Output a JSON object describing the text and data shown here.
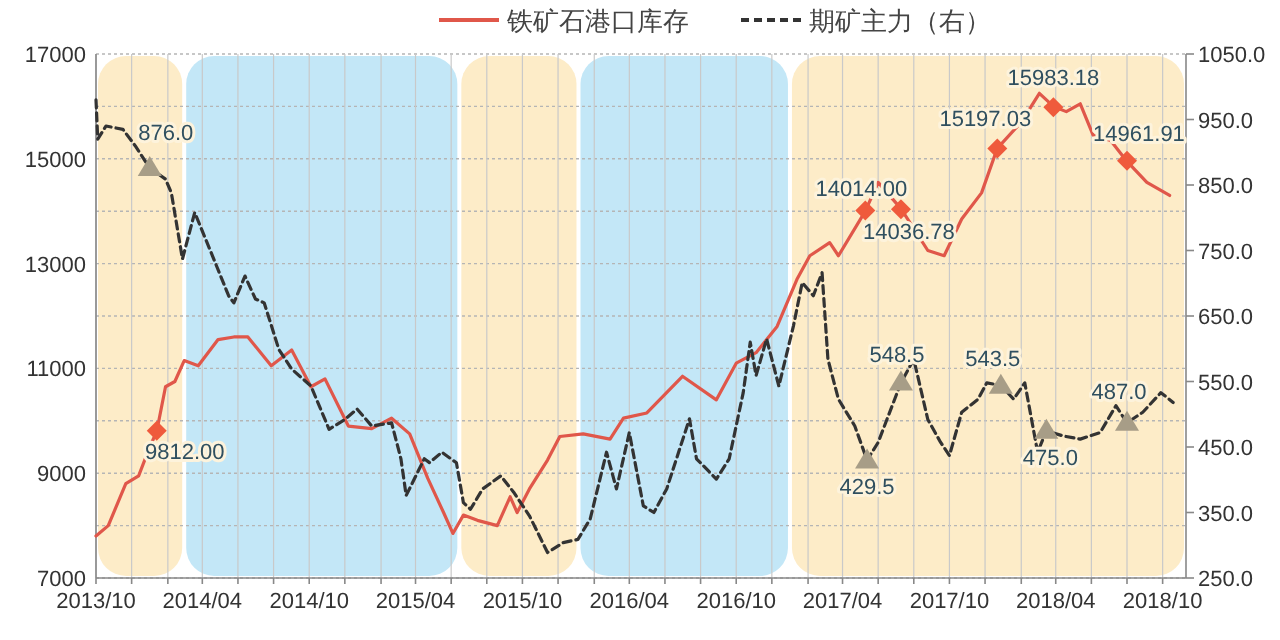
{
  "chart_data": {
    "type": "line",
    "legend": "top",
    "grid": true,
    "xlim": [
      "2013-10-01",
      "2018-11-10"
    ],
    "xticks": [
      {
        "value": "2013-10-01",
        "label": "2013/10"
      },
      {
        "value": "2013-12-01",
        "label": null
      },
      {
        "value": "2014-02-01",
        "label": null
      },
      {
        "value": "2014-04-01",
        "label": "2014/04"
      },
      {
        "value": "2014-06-01",
        "label": null
      },
      {
        "value": "2014-08-01",
        "label": null
      },
      {
        "value": "2014-10-01",
        "label": "2014/10"
      },
      {
        "value": "2014-12-01",
        "label": null
      },
      {
        "value": "2015-02-01",
        "label": null
      },
      {
        "value": "2015-04-01",
        "label": "2015/04"
      },
      {
        "value": "2015-06-01",
        "label": null
      },
      {
        "value": "2015-08-01",
        "label": null
      },
      {
        "value": "2015-10-01",
        "label": "2015/10"
      },
      {
        "value": "2015-12-01",
        "label": null
      },
      {
        "value": "2016-02-01",
        "label": null
      },
      {
        "value": "2016-04-01",
        "label": "2016/04"
      },
      {
        "value": "2016-06-01",
        "label": null
      },
      {
        "value": "2016-08-01",
        "label": null
      },
      {
        "value": "2016-10-01",
        "label": "2016/10"
      },
      {
        "value": "2016-12-01",
        "label": null
      },
      {
        "value": "2017-02-01",
        "label": null
      },
      {
        "value": "2017-04-01",
        "label": "2017/04"
      },
      {
        "value": "2017-06-01",
        "label": null
      },
      {
        "value": "2017-08-01",
        "label": null
      },
      {
        "value": "2017-10-01",
        "label": "2017/10"
      },
      {
        "value": "2017-12-01",
        "label": null
      },
      {
        "value": "2018-02-01",
        "label": null
      },
      {
        "value": "2018-04-01",
        "label": "2018/04"
      },
      {
        "value": "2018-06-01",
        "label": null
      },
      {
        "value": "2018-08-01",
        "label": null
      },
      {
        "value": "2018-10-01",
        "label": "2018/10"
      }
    ],
    "ylim": [
      7000,
      17000
    ],
    "yticks": [
      7000,
      {
        "value": 8000,
        "label": null
      },
      9000,
      {
        "value": 10000,
        "label": null
      },
      11000,
      {
        "value": 12000,
        "label": null
      },
      13000,
      {
        "value": 14000,
        "label": null
      },
      15000,
      {
        "value": 16000,
        "label": null
      },
      17000
    ],
    "y2lim": [
      250,
      1050
    ],
    "y2ticks": [
      {
        "value": 250,
        "label": "250.0"
      },
      {
        "value": 350,
        "label": "350.0"
      },
      {
        "value": 450,
        "label": "450.0"
      },
      {
        "value": 550,
        "label": "550.0"
      },
      {
        "value": 650,
        "label": "650.0"
      },
      {
        "value": 750,
        "label": "750.0"
      },
      {
        "value": 850,
        "label": "850.0"
      },
      {
        "value": 950,
        "label": "950.0"
      },
      {
        "value": 1050,
        "label": "1050.0"
      }
    ],
    "bands": [
      {
        "axis": "x",
        "from": "2013-10-01",
        "to": "2014-03-01",
        "color": "#fdecc8"
      },
      {
        "axis": "x",
        "from": "2014-03-01",
        "to": "2015-06-15",
        "color": "#c3e7f7"
      },
      {
        "axis": "x",
        "from": "2015-06-15",
        "to": "2016-01-05",
        "color": "#fdecc8"
      },
      {
        "axis": "x",
        "from": "2016-01-05",
        "to": "2017-01-01",
        "color": "#c3e7f7"
      },
      {
        "axis": "x",
        "from": "2017-01-01",
        "to": "2018-11-10",
        "color": "#fdecc8"
      }
    ],
    "series": [
      {
        "name": "铁矿石港口库存",
        "color": "#e0574a",
        "axis": "y",
        "line_style": "solid",
        "x": [
          "2013-10-01",
          "2013-10-22",
          "2013-11-21",
          "2013-12-13",
          "2014-01-01",
          "2014-01-13",
          "2014-01-28",
          "2014-02-13",
          "2014-03-01",
          "2014-03-25",
          "2014-04-28",
          "2014-05-25",
          "2014-06-18",
          "2014-07-28",
          "2014-09-01",
          "2014-10-04",
          "2014-10-28",
          "2014-12-07",
          "2015-01-16",
          "2015-02-19",
          "2015-03-22",
          "2015-04-22",
          "2015-05-19",
          "2015-06-04",
          "2015-06-22",
          "2015-07-16",
          "2015-08-19",
          "2015-09-10",
          "2015-09-22",
          "2015-10-13",
          "2015-11-13",
          "2015-12-04",
          "2016-01-13",
          "2016-02-28",
          "2016-03-22",
          "2016-05-01",
          "2016-07-01",
          "2016-08-28",
          "2016-10-01",
          "2016-11-04",
          "2016-12-10",
          "2017-01-13",
          "2017-02-04",
          "2017-03-10",
          "2017-03-25",
          "2017-05-10",
          "2017-06-01",
          "2017-07-10",
          "2017-08-25",
          "2017-09-22",
          "2017-10-22",
          "2017-11-25",
          "2017-12-22",
          "2018-02-01",
          "2018-03-04",
          "2018-03-28",
          "2018-04-19",
          "2018-05-13",
          "2018-06-04",
          "2018-07-04",
          "2018-08-01",
          "2018-09-04",
          "2018-10-13"
        ],
        "values": [
          7800,
          8000,
          8800,
          8950,
          9500,
          9800,
          10650,
          10750,
          11150,
          11050,
          11550,
          11600,
          11600,
          11050,
          11350,
          10650,
          10800,
          9900,
          9850,
          10050,
          9750,
          8900,
          8250,
          7850,
          8200,
          8100,
          8000,
          8550,
          8250,
          8700,
          9250,
          9700,
          9750,
          9650,
          10050,
          10150,
          10850,
          10400,
          11100,
          11300,
          11800,
          12700,
          13150,
          13400,
          13150,
          14000,
          14550,
          14050,
          13250,
          13150,
          13850,
          14350,
          15200,
          15700,
          16250,
          16000,
          15900,
          16050,
          15450,
          15350,
          14950,
          14550,
          14300
        ]
      },
      {
        "name": "期矿主力（右）",
        "color": "#333333",
        "axis": "y2",
        "line_style": "dashed",
        "x": [
          "2013-10-01",
          "2013-10-04",
          "2013-10-18",
          "2013-11-16",
          "2013-12-07",
          "2014-01-01",
          "2014-01-28",
          "2014-02-07",
          "2014-02-26",
          "2014-03-19",
          "2014-04-16",
          "2014-05-16",
          "2014-05-25",
          "2014-06-13",
          "2014-07-01",
          "2014-07-16",
          "2014-08-10",
          "2014-09-01",
          "2014-10-04",
          "2014-11-04",
          "2014-12-01",
          "2014-12-22",
          "2015-01-16",
          "2015-02-19",
          "2015-03-07",
          "2015-03-16",
          "2015-04-16",
          "2015-04-25",
          "2015-05-16",
          "2015-06-10",
          "2015-06-22",
          "2015-07-04",
          "2015-07-25",
          "2015-08-25",
          "2015-09-16",
          "2015-10-13",
          "2015-11-13",
          "2015-12-10",
          "2016-01-04",
          "2016-01-25",
          "2016-02-22",
          "2016-03-10",
          "2016-04-01",
          "2016-04-25",
          "2016-05-13",
          "2016-06-04",
          "2016-06-28",
          "2016-07-13",
          "2016-07-25",
          "2016-08-28",
          "2016-09-19",
          "2016-10-13",
          "2016-10-25",
          "2016-11-04",
          "2016-11-22",
          "2016-12-13",
          "2017-01-07",
          "2017-01-22",
          "2017-02-10",
          "2017-02-25",
          "2017-03-07",
          "2017-03-25",
          "2017-04-22",
          "2017-05-13",
          "2017-06-01",
          "2017-06-16",
          "2017-07-10",
          "2017-08-01",
          "2017-08-25",
          "2017-09-16",
          "2017-10-01",
          "2017-10-22",
          "2017-11-19",
          "2017-12-04",
          "2017-12-28",
          "2018-01-19",
          "2018-02-07",
          "2018-03-01",
          "2018-03-16",
          "2018-04-13",
          "2018-05-13",
          "2018-06-16",
          "2018-07-13",
          "2018-08-01",
          "2018-08-28",
          "2018-09-28",
          "2018-10-19"
        ],
        "values": [
          980,
          920,
          940,
          935,
          910,
          876,
          859,
          838,
          737,
          808,
          747,
          681,
          670,
          711,
          676,
          670,
          599,
          569,
          543,
          477,
          492,
          508,
          482,
          487,
          432,
          376,
          432,
          426,
          442,
          426,
          365,
          355,
          386,
          406,
          381,
          345,
          289,
          304,
          309,
          340,
          442,
          386,
          472,
          360,
          350,
          386,
          452,
          493,
          432,
          401,
          432,
          533,
          610,
          559,
          615,
          543,
          635,
          701,
          681,
          716,
          584,
          523,
          482,
          430,
          457,
          492,
          548,
          584,
          492,
          457,
          437,
          503,
          523,
          548,
          544,
          523,
          548,
          442,
          475,
          467,
          462,
          472,
          513,
          487,
          503,
          533,
          518
        ]
      },
      {
        "type": "scatter",
        "color": "#ef5a3c",
        "axis": "y",
        "marker": "diamond",
        "x": [
          "2014-01-13",
          "2017-05-10",
          "2017-07-10",
          "2017-12-22",
          "2018-03-28",
          "2018-08-01"
        ],
        "values": [
          9812,
          14014,
          14036.78,
          15197.03,
          15983.18,
          14961.91
        ],
        "value_labels": [
          "9812.00",
          "14014.00",
          "14036.78",
          "15197.03",
          "15983.18",
          "14961.91"
        ]
      },
      {
        "type": "scatter",
        "color": "#a79d87",
        "axis": "y2",
        "marker": "triangle",
        "x": [
          "2014-01-01",
          "2017-05-13",
          "2017-07-10",
          "2017-12-28",
          "2018-03-16",
          "2018-08-01"
        ],
        "values": [
          876,
          429.5,
          548.5,
          543.5,
          475,
          487
        ],
        "value_labels": [
          "876.0",
          "429.5",
          "548.5",
          "543.5",
          "475.0",
          "487.0"
        ]
      }
    ]
  }
}
